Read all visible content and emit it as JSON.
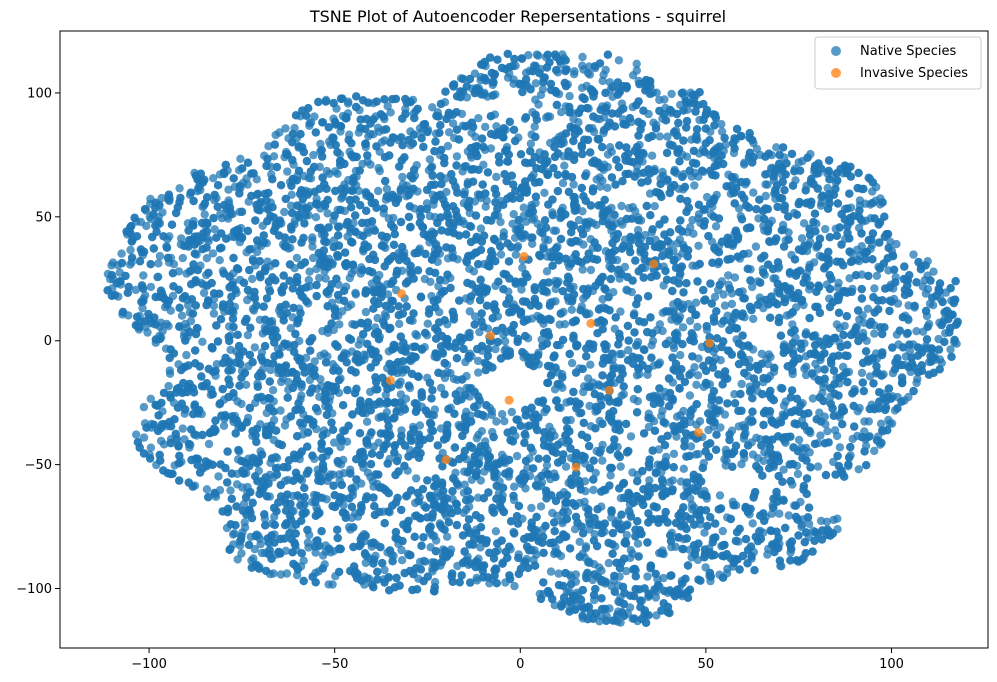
{
  "chart_data": {
    "type": "scatter",
    "title": "TSNE Plot of Autoencoder Repersentations - squirrel",
    "xlabel": "",
    "ylabel": "",
    "xlim": [
      -124,
      126
    ],
    "ylim": [
      -124,
      125
    ],
    "xticks": [
      -100,
      -50,
      0,
      50,
      100
    ],
    "yticks": [
      -100,
      -50,
      0,
      50,
      100
    ],
    "grid": false,
    "legend_position": "top-right",
    "series": [
      {
        "name": "Native Species",
        "color": "#1f77b4",
        "point_count_estimate": 9000,
        "cloud_shape": "irregular blob spanning roughly x -113 to 116 and y -112 to 113, with gaps near (-2,-18), (-3,95), (58,-58), (-25,-52), (65,2) and a notch near (80,-60)"
      },
      {
        "name": "Invasive Species",
        "color": "#ff7f0e",
        "points": [
          {
            "x": 1,
            "y": 34
          },
          {
            "x": 36,
            "y": 31
          },
          {
            "x": -32,
            "y": 19
          },
          {
            "x": 19,
            "y": 7
          },
          {
            "x": -8,
            "y": 2
          },
          {
            "x": 51,
            "y": -1
          },
          {
            "x": -35,
            "y": -16
          },
          {
            "x": 24,
            "y": -20
          },
          {
            "x": -3,
            "y": -24
          },
          {
            "x": 48,
            "y": -37
          },
          {
            "x": -20,
            "y": -48
          },
          {
            "x": 15,
            "y": -51
          }
        ]
      }
    ]
  }
}
